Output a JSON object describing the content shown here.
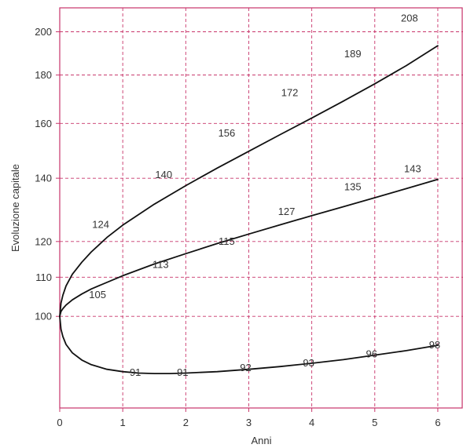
{
  "chart_data": {
    "type": "line",
    "title": "",
    "xlabel": "Anni",
    "ylabel": "Evoluzione capitale",
    "x_ticks": [
      0,
      1,
      2,
      3,
      4,
      5,
      6
    ],
    "y_ticks": [
      100,
      110,
      120,
      140,
      160,
      180,
      200
    ],
    "y_scale": "log",
    "xlim": [
      0,
      6.4
    ],
    "ylim": [
      80,
      212
    ],
    "grid": true,
    "grid_color": "#c8346a",
    "frame_color": "#c8346a",
    "line_color": "#111111",
    "series": [
      {
        "x": [
          0,
          0.02,
          0.05,
          0.1,
          0.2,
          0.35,
          0.5,
          0.75,
          1,
          1.5,
          2,
          2.5,
          3,
          3.5,
          4,
          4.5,
          5,
          5.5,
          6
        ],
        "values": [
          100,
          103.3,
          105.3,
          107.7,
          110.8,
          114.1,
          117,
          121.2,
          124.9,
          131.4,
          137.5,
          143.5,
          149.5,
          155.7,
          162.1,
          168.9,
          176.2,
          184.2,
          193.3
        ]
      },
      {
        "x": [
          0,
          0.02,
          0.05,
          0.1,
          0.2,
          0.35,
          0.5,
          1,
          1.5,
          2,
          2.5,
          3,
          3.5,
          4,
          4.5,
          5,
          5.5,
          6
        ],
        "values": [
          100,
          101.2,
          101.9,
          102.8,
          104.1,
          105.6,
          106.9,
          110.4,
          113.6,
          116.5,
          119.4,
          122.2,
          125,
          127.8,
          130.6,
          133.5,
          136.5,
          139.6
        ]
      },
      {
        "x": [
          0,
          0.02,
          0.05,
          0.1,
          0.2,
          0.35,
          0.5,
          0.75,
          1,
          1.25,
          1.5,
          1.75,
          2,
          2.5,
          3,
          3.5,
          4,
          4.5,
          5,
          5.5,
          6
        ],
        "values": [
          100,
          96.9,
          95.2,
          93.4,
          91.5,
          89.9,
          88.9,
          87.9,
          87.4,
          87.1,
          87,
          87,
          87.1,
          87.4,
          87.9,
          88.5,
          89.2,
          90,
          91,
          92,
          93.2
        ]
      }
    ],
    "point_labels": [
      {
        "text": "208",
        "x": 5.55,
        "y": 205
      },
      {
        "text": "189",
        "x": 4.65,
        "y": 188
      },
      {
        "text": "172",
        "x": 3.65,
        "y": 171
      },
      {
        "text": "156",
        "x": 2.65,
        "y": 155
      },
      {
        "text": "140",
        "x": 1.65,
        "y": 140
      },
      {
        "text": "124",
        "x": 0.65,
        "y": 124
      },
      {
        "text": "105",
        "x": 0.6,
        "y": 104.5
      },
      {
        "text": "113",
        "x": 1.6,
        "y": 112.5
      },
      {
        "text": "115",
        "x": 2.65,
        "y": 119
      },
      {
        "text": "127",
        "x": 3.6,
        "y": 128
      },
      {
        "text": "135",
        "x": 4.65,
        "y": 136
      },
      {
        "text": "143",
        "x": 5.6,
        "y": 142
      },
      {
        "text": "91",
        "x": 1.2,
        "y": 86.5
      },
      {
        "text": "91",
        "x": 1.95,
        "y": 86.5
      },
      {
        "text": "92",
        "x": 2.95,
        "y": 87.5
      },
      {
        "text": "93",
        "x": 3.95,
        "y": 88.5
      },
      {
        "text": "96",
        "x": 4.95,
        "y": 90.5
      },
      {
        "text": "98",
        "x": 5.95,
        "y": 92.5
      }
    ]
  }
}
